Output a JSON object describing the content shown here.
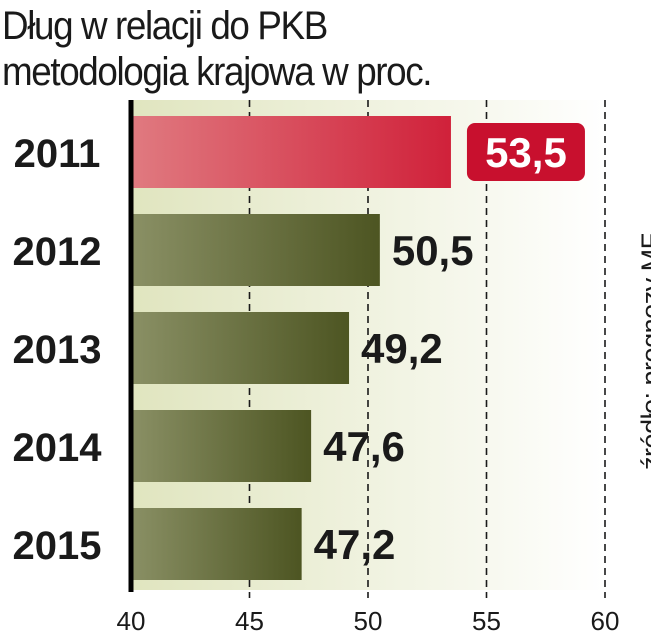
{
  "title": "Dług w relacji do PKB",
  "subtitle": "metodologia krajowa w proc.",
  "source": "źródło: prognozy MF",
  "colors": {
    "highlight_bar": "#d0213a",
    "highlight_bar_light": "#e07a80",
    "bar_dark": "#4d5522",
    "bar_light": "#8a9065",
    "label_box": "#c8102e",
    "plot_bg_left": "#e0e5bf",
    "plot_bg_right": "#ffffff"
  },
  "chart_data": {
    "type": "bar",
    "orientation": "horizontal",
    "categories": [
      "2011",
      "2012",
      "2013",
      "2014",
      "2015"
    ],
    "values": [
      53.5,
      50.5,
      49.2,
      47.6,
      47.2
    ],
    "value_labels": [
      "53,5",
      "50,5",
      "49,2",
      "47,6",
      "47,2"
    ],
    "highlighted_index": 0,
    "xlim": [
      40,
      60
    ],
    "xticks": [
      40,
      45,
      50,
      55,
      60
    ],
    "xtick_labels": [
      "40",
      "45",
      "50",
      "55",
      "60"
    ],
    "grid": "vertical dashed"
  }
}
